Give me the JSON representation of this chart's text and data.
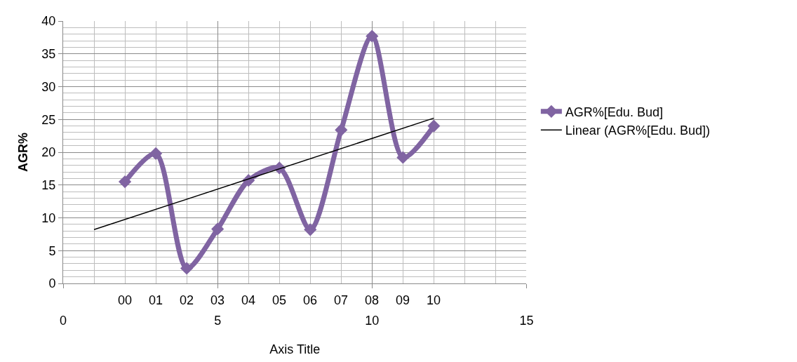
{
  "chart_data": {
    "type": "line",
    "xlabel": "Axis Title",
    "ylabel": "AGR%",
    "xlim": [
      0,
      15
    ],
    "xticks": [
      0,
      5,
      10,
      15
    ],
    "ylim": [
      0,
      40
    ],
    "yticks": [
      0,
      5,
      10,
      15,
      20,
      25,
      30,
      35,
      40
    ],
    "annotations": [
      "00",
      "01",
      "02",
      "03",
      "04",
      "05",
      "06",
      "07",
      "08",
      "09",
      "10"
    ],
    "grid": true,
    "legend": "right",
    "marker": "diamond",
    "line_style": "solid",
    "series": [
      {
        "name": "AGR%[Edu. Bud]",
        "color": "#8064a2",
        "x": [
          2,
          3,
          4,
          5,
          6,
          7,
          8,
          9,
          10,
          11,
          12
        ],
        "values": [
          15.5,
          19.8,
          2.3,
          8.3,
          15.7,
          17.6,
          8.2,
          23.4,
          37.7,
          19.2,
          24.0
        ]
      },
      {
        "name": "Linear (AGR%[Edu. Bud])",
        "type": "line",
        "color": "#000000",
        "marker": "none",
        "x": [
          1,
          12
        ],
        "values": [
          8.2,
          25.2
        ]
      }
    ]
  }
}
